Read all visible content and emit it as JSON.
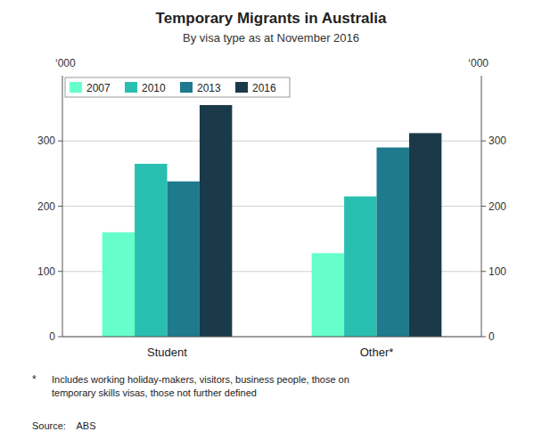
{
  "chart_data": {
    "type": "bar",
    "title": "Temporary Migrants in Australia",
    "subtitle": "By visa type as at November 2016",
    "categories": [
      "Student",
      "Other*"
    ],
    "series": [
      {
        "name": "2007",
        "color": "#66FFCC",
        "values": [
          160,
          128
        ]
      },
      {
        "name": "2010",
        "color": "#29BFB0",
        "values": [
          265,
          215
        ]
      },
      {
        "name": "2013",
        "color": "#1E7A8C",
        "values": [
          238,
          290
        ]
      },
      {
        "name": "2016",
        "color": "#1A3A4A",
        "values": [
          355,
          312
        ]
      }
    ],
    "ylim": [
      0,
      400
    ],
    "yticks": [
      0,
      100,
      200,
      300
    ],
    "y2lim": [
      0,
      400
    ],
    "y2ticks": [
      0,
      100,
      200,
      300
    ],
    "ylabel": "‘000",
    "y2label": "‘000",
    "grid": true,
    "legend": "upper left",
    "annotations": [
      "*",
      "Includes working holiday-makers, visitors, business people, those on\ntemporary skills visas, those not further defined",
      "Source:    ABS"
    ]
  }
}
